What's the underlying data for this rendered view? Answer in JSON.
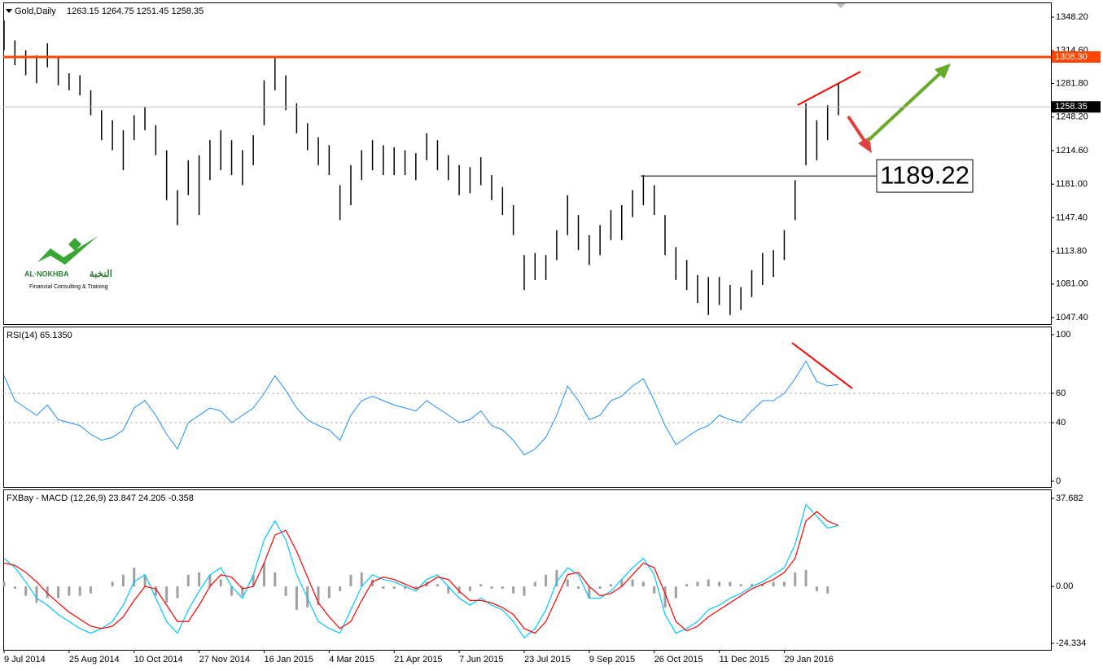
{
  "chart_data": [
    {
      "type": "ohlc",
      "title": "Gold,Daily",
      "subtitle": "1263.15 1264.75 1251.45 1258.35",
      "color": "#000000",
      "categories": [
        "9 Jul 2014",
        null,
        null,
        null,
        null,
        null,
        "25 Aug 2014",
        null,
        null,
        null,
        null,
        null,
        "10 Oct 2014",
        null,
        null,
        null,
        null,
        null,
        "27 Nov 2014",
        null,
        null,
        null,
        null,
        null,
        "16 Jan 2015",
        null,
        null,
        null,
        null,
        null,
        "4 Mar 2015",
        null,
        null,
        null,
        null,
        null,
        "21 Apr 2015",
        null,
        null,
        null,
        null,
        null,
        "7 Jun 2015",
        null,
        null,
        null,
        null,
        null,
        "23 Jul 2015",
        null,
        null,
        null,
        null,
        null,
        "9 Sep 2015",
        null,
        null,
        null,
        null,
        null,
        "26 Oct 2015",
        null,
        null,
        null,
        null,
        null,
        "11 Dec 2015",
        null,
        null,
        null,
        null,
        null,
        "29 Jan 2016",
        null,
        null,
        null,
        null,
        null
      ],
      "high": [
        1345,
        1325,
        1315,
        1310,
        1322,
        1308,
        1292,
        1290,
        1275,
        1255,
        1245,
        1235,
        1250,
        1258,
        1240,
        1215,
        1175,
        1205,
        1210,
        1225,
        1235,
        1225,
        1215,
        1230,
        1285,
        1307,
        1290,
        1262,
        1242,
        1228,
        1220,
        1180,
        1200,
        1215,
        1225,
        1220,
        1218,
        1215,
        1212,
        1232,
        1225,
        1210,
        1200,
        1198,
        1208,
        1190,
        1178,
        1160,
        1110,
        1112,
        1110,
        1135,
        1170,
        1150,
        1130,
        1140,
        1155,
        1160,
        1175,
        1190,
        1180,
        1150,
        1118,
        1105,
        1090,
        1088,
        1088,
        1080,
        1078,
        1095,
        1112,
        1115,
        1135,
        1185,
        1262,
        1245,
        1260,
        1282
      ],
      "low": [
        1315,
        1300,
        1290,
        1282,
        1298,
        1280,
        1275,
        1270,
        1250,
        1225,
        1215,
        1195,
        1225,
        1235,
        1210,
        1165,
        1140,
        1170,
        1150,
        1185,
        1195,
        1190,
        1180,
        1200,
        1240,
        1275,
        1255,
        1232,
        1215,
        1200,
        1190,
        1145,
        1160,
        1185,
        1195,
        1190,
        1190,
        1190,
        1185,
        1205,
        1195,
        1185,
        1170,
        1172,
        1180,
        1165,
        1150,
        1130,
        1075,
        1085,
        1085,
        1105,
        1130,
        1115,
        1100,
        1110,
        1125,
        1125,
        1148,
        1160,
        1150,
        1110,
        1085,
        1075,
        1062,
        1050,
        1060,
        1050,
        1055,
        1068,
        1080,
        1088,
        1105,
        1145,
        1200,
        1205,
        1225,
        1250
      ],
      "ylim": [
        1040.9,
        1362.1
      ],
      "yticks": [
        {
          "value": 1348.2,
          "label": "1348.20"
        },
        {
          "value": 1314.6,
          "label": "1314.60"
        },
        {
          "value": 1281.8,
          "label": "1281.80"
        },
        {
          "value": 1248.2,
          "label": "1248.20"
        },
        {
          "value": 1214.6,
          "label": "1214.60"
        },
        {
          "value": 1181,
          "label": "1181.00"
        },
        {
          "value": 1147.4,
          "label": "1147.40"
        },
        {
          "value": 1113.8,
          "label": "1113.80"
        },
        {
          "value": 1081,
          "label": "1081.00"
        },
        {
          "value": 1047.4,
          "label": "1047.40"
        }
      ],
      "levels": [
        {
          "value": 1308.3,
          "label": "1308.30",
          "color": "#ff4500"
        },
        {
          "value": 1258.35,
          "label": "1258.35",
          "color": "#c0c0c0"
        }
      ],
      "annotation": {
        "value": 1189.22,
        "label": "1189.22"
      }
    },
    {
      "type": "line",
      "title": "RSI(14) 65.1350",
      "color": "#1e90ff",
      "values": [
        72,
        55,
        50,
        45,
        52,
        42,
        40,
        38,
        32,
        28,
        30,
        35,
        50,
        55,
        45,
        32,
        22,
        40,
        45,
        50,
        48,
        40,
        45,
        50,
        60,
        72,
        62,
        50,
        42,
        38,
        35,
        28,
        45,
        55,
        58,
        55,
        52,
        50,
        48,
        55,
        50,
        45,
        40,
        42,
        48,
        38,
        35,
        28,
        18,
        22,
        30,
        45,
        65,
        55,
        42,
        45,
        55,
        58,
        65,
        70,
        55,
        38,
        25,
        30,
        35,
        38,
        45,
        42,
        40,
        48,
        55,
        55,
        60,
        70,
        82,
        68,
        65,
        66
      ],
      "ylim": [
        -3.9,
        105
      ],
      "yticks": [
        100,
        60,
        40,
        0
      ],
      "levels": [
        60,
        40
      ]
    },
    {
      "type": "macd",
      "title": "FXBay - MACD (12,26,9) 23.847 24.205 -0.358",
      "series": [
        {
          "color": "#00c8ff",
          "values": [
            12,
            8,
            2,
            -5,
            -8,
            -12,
            -15,
            -18,
            -20,
            -18,
            -15,
            -8,
            2,
            5,
            -5,
            -15,
            -20,
            -10,
            -2,
            5,
            8,
            0,
            -5,
            5,
            20,
            28,
            20,
            5,
            -5,
            -15,
            -18,
            -20,
            -10,
            0,
            5,
            3,
            2,
            0,
            -2,
            3,
            5,
            0,
            -5,
            -8,
            -5,
            -8,
            -10,
            -15,
            -22,
            -18,
            -10,
            2,
            8,
            5,
            -5,
            -5,
            -2,
            3,
            8,
            12,
            5,
            -12,
            -20,
            -18,
            -15,
            -10,
            -8,
            -5,
            -3,
            0,
            2,
            5,
            8,
            18,
            35,
            30,
            25,
            26
          ]
        },
        {
          "color": "#ff0000",
          "values": [
            10,
            9,
            6,
            2,
            -3,
            -7,
            -11,
            -14,
            -17,
            -18,
            -17,
            -13,
            -6,
            0,
            -1,
            -8,
            -15,
            -15,
            -8,
            0,
            5,
            4,
            -1,
            0,
            10,
            22,
            24,
            15,
            4,
            -7,
            -13,
            -18,
            -15,
            -6,
            2,
            4,
            3,
            1,
            -1,
            1,
            4,
            3,
            -2,
            -6,
            -6,
            -7,
            -9,
            -12,
            -18,
            -20,
            -15,
            -5,
            5,
            6,
            0,
            -4,
            -3,
            0,
            5,
            10,
            8,
            -3,
            -15,
            -19,
            -17,
            -13,
            -10,
            -7,
            -4,
            -1,
            1,
            3,
            6,
            12,
            28,
            32,
            28,
            26
          ]
        }
      ],
      "histogram": {
        "color": "#a0a0a0",
        "values": [
          2,
          -1,
          -4,
          -7,
          -5,
          -5,
          -4,
          -4,
          -3,
          0,
          2,
          5,
          8,
          5,
          -4,
          -7,
          -5,
          5,
          6,
          5,
          3,
          -4,
          -4,
          5,
          10,
          6,
          -4,
          -10,
          -9,
          -8,
          -5,
          -2,
          5,
          6,
          3,
          -1,
          -1,
          -1,
          -1,
          2,
          1,
          -3,
          -3,
          -2,
          1,
          -1,
          -1,
          -3,
          -4,
          2,
          5,
          7,
          3,
          -1,
          -5,
          -1,
          1,
          3,
          3,
          2,
          -3,
          -9,
          -5,
          1,
          2,
          3,
          2,
          2,
          1,
          1,
          1,
          2,
          2,
          6,
          7,
          -2,
          -3,
          0
        ]
      },
      "ylim": [
        -27.1,
        41.14
      ],
      "yticks": [
        37.682,
        {
          "value": 0,
          "label": "0.00"
        },
        -24.334
      ]
    }
  ],
  "logo": {
    "name": "AL·NOKHBA",
    "arabic": "النخبة",
    "tagline": "Financial Consulting & Training"
  }
}
